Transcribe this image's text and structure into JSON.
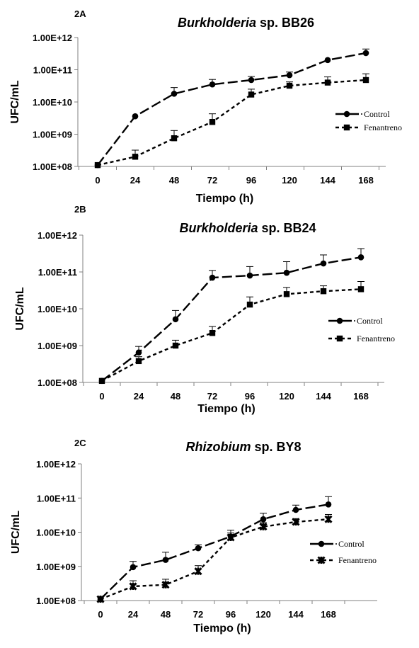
{
  "chart_data": [
    {
      "panel": "2A",
      "type": "line",
      "title_italic": "Burkholderia",
      "title_rest": " sp. BB26",
      "xlabel": "Tiempo (h)",
      "ylabel": "UFC/mL",
      "y_scale": "log",
      "ylim": [
        100000000,
        1000000000000
      ],
      "y_ticks": [
        "1.00E+08",
        "1.00E+09",
        "1.00E+10",
        "1.00E+11",
        "1.00E+12"
      ],
      "categories": [
        "0",
        "24",
        "48",
        "72",
        "96",
        "120",
        "144",
        "168"
      ],
      "legend_position": "right",
      "series": [
        {
          "name": "Control",
          "marker": "circle",
          "dash": "long",
          "values": [
            110000000,
            3600000000,
            18000000000,
            35000000000,
            48000000000,
            68000000000,
            200000000000,
            330000000000
          ],
          "error_upper": [
            null,
            null,
            28000000000,
            50000000000,
            62000000000,
            85000000000,
            null,
            440000000000
          ]
        },
        {
          "name": "Fenantreno",
          "marker": "square",
          "dash": "short",
          "values": [
            110000000,
            200000000,
            750000000,
            2400000000,
            17000000000,
            32000000000,
            40000000000,
            48000000000
          ],
          "error_upper": [
            null,
            320000000,
            1300000000,
            4300000000,
            25000000000,
            42000000000,
            60000000000,
            75000000000
          ]
        }
      ]
    },
    {
      "panel": "2B",
      "type": "line",
      "title_italic": "Burkholderia",
      "title_rest": " sp. BB24",
      "xlabel": "Tiempo  (h)",
      "ylabel": "UFC/mL",
      "y_scale": "log",
      "ylim": [
        100000000,
        1000000000000
      ],
      "y_ticks": [
        "1.00E+08",
        "1.00E+09",
        "1.00E+10",
        "1.00E+11",
        "1.00E+12"
      ],
      "categories": [
        "0",
        "24",
        "48",
        "72",
        "96",
        "120",
        "144",
        "168"
      ],
      "legend_position": "right",
      "series": [
        {
          "name": "Control",
          "marker": "circle",
          "dash": "long",
          "values": [
            110000000,
            650000000,
            5200000000,
            70000000000,
            80000000000,
            95000000000,
            170000000000,
            250000000000
          ],
          "error_upper": [
            null,
            950000000,
            9000000000,
            110000000000,
            140000000000,
            190000000000,
            290000000000,
            430000000000
          ]
        },
        {
          "name": "Fenantreno",
          "marker": "square",
          "dash": "short",
          "values": [
            110000000,
            380000000,
            1000000000,
            2200000000,
            13000000000,
            25000000000,
            30000000000,
            34000000000
          ],
          "error_upper": [
            null,
            500000000,
            1400000000,
            3300000000,
            21000000000,
            38000000000,
            42000000000,
            55000000000
          ]
        }
      ]
    },
    {
      "panel": "2C",
      "type": "line",
      "title_italic": "Rhizobium",
      "title_rest": " sp. BY8",
      "xlabel": "Tiempo (h)",
      "ylabel": "UFC/mL",
      "y_scale": "log",
      "ylim": [
        100000000,
        1000000000000
      ],
      "y_ticks": [
        "1.00E+08",
        "1.00E+09",
        "1.00E+10",
        "1.00E+11",
        "1.00E+12"
      ],
      "categories": [
        "0",
        "24",
        "48",
        "72",
        "96",
        "120",
        "144",
        "168"
      ],
      "legend_position": "right",
      "series": [
        {
          "name": "Control",
          "marker": "circle",
          "dash": "long",
          "values": [
            110000000,
            950000000,
            1550000000,
            3400000000,
            7500000000,
            24000000000,
            45000000000,
            65000000000
          ],
          "error_upper": [
            null,
            1400000000,
            2600000000,
            4300000000,
            11500000000,
            36000000000,
            62000000000,
            110000000000
          ]
        },
        {
          "name": "Fenantreno",
          "marker": "x-star",
          "dash": "short",
          "values": [
            110000000,
            260000000,
            290000000,
            720000000,
            7000000000,
            14500000000,
            20000000000,
            24000000000
          ],
          "error_upper": [
            null,
            380000000,
            420000000,
            1050000000,
            9500000000,
            19000000000,
            25000000000,
            33000000000
          ]
        }
      ]
    }
  ]
}
